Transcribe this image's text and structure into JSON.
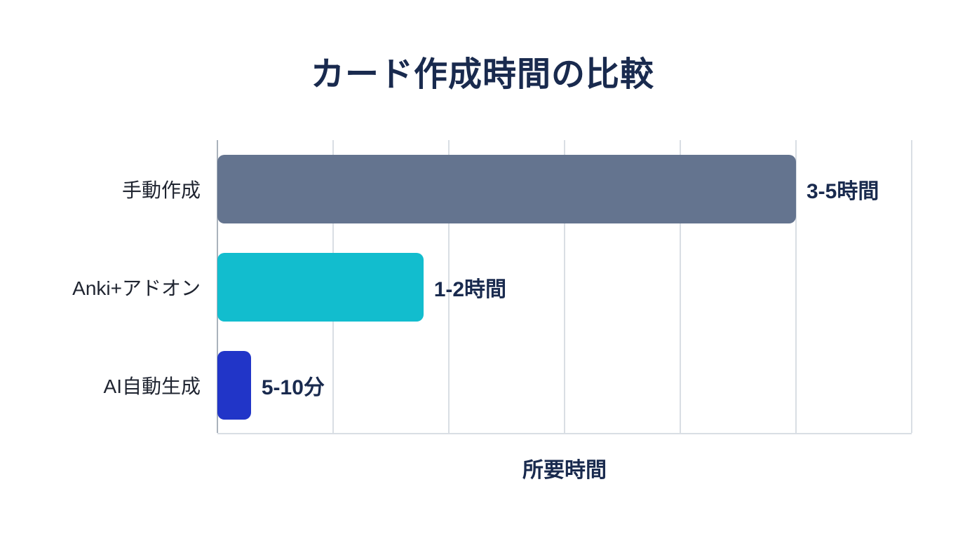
{
  "page": {
    "background": "#ffffff"
  },
  "chart_data": {
    "type": "bar",
    "orientation": "horizontal",
    "title": "カード作成時間の比較",
    "xlabel": "所要時間",
    "ylabel": "",
    "categories": [
      "手動作成",
      "Anki+アドオン",
      "AI自動生成"
    ],
    "series": [
      {
        "name": "所要時間",
        "value_labels": [
          "3-5時間",
          "1-2時間",
          "5-10分"
        ],
        "values_in_grid_units": [
          5.0,
          1.78,
          0.29
        ]
      }
    ],
    "grid": true,
    "grid_intervals": 6,
    "legend": "none",
    "colors": {
      "bars": [
        "#64748f",
        "#12bdce",
        "#2135c8"
      ],
      "title_text": "#192a4e",
      "value_label_text": "#192a4e",
      "category_text": "#1f2430",
      "gridline": "#d9dee4",
      "axis_line": "#aab2bc",
      "background": "#ffffff"
    }
  }
}
